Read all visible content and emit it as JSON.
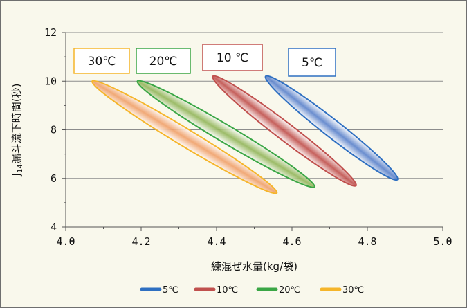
{
  "chart_data": {
    "type": "scatter",
    "xlabel": "練混ぜ水量(kg/袋)",
    "ylabel_main": "J",
    "ylabel_sub": "14",
    "ylabel_rest": "漏斗流下時間(秒)",
    "xlim": [
      4.0,
      5.0
    ],
    "ylim": [
      4,
      12
    ],
    "xticks": [
      "4.0",
      "4.2",
      "4.4",
      "4.6",
      "4.8",
      "5.0"
    ],
    "yticks": [
      "4",
      "6",
      "8",
      "10",
      "12"
    ],
    "grid": "horizontal",
    "legend_position": "bottom",
    "series": [
      {
        "name": "5℃",
        "color": "#2e6fc1",
        "fill": "#5b82cc",
        "range": [
          {
            "x": 4.53,
            "y": 10.2
          },
          {
            "x": 4.88,
            "y": 5.95
          }
        ]
      },
      {
        "name": "10℃",
        "color": "#c0504d",
        "fill": "#c0504d",
        "range": [
          {
            "x": 4.39,
            "y": 10.2
          },
          {
            "x": 4.77,
            "y": 5.7
          }
        ]
      },
      {
        "name": "20℃",
        "color": "#3aa645",
        "fill": "#92b55a",
        "range": [
          {
            "x": 4.19,
            "y": 10.0
          },
          {
            "x": 4.66,
            "y": 5.65
          }
        ]
      },
      {
        "name": "30℃",
        "color": "#f5b52a",
        "fill": "#f0a06a",
        "range": [
          {
            "x": 4.07,
            "y": 10.0
          },
          {
            "x": 4.56,
            "y": 5.4
          }
        ]
      }
    ],
    "annotations": [
      {
        "text": "30℃",
        "color": "#f5b52a"
      },
      {
        "text": "20℃",
        "color": "#3aa645"
      },
      {
        "text": "10 ℃",
        "color": "#c0504d"
      },
      {
        "text": "5℃",
        "color": "#2e6fc1"
      }
    ]
  }
}
